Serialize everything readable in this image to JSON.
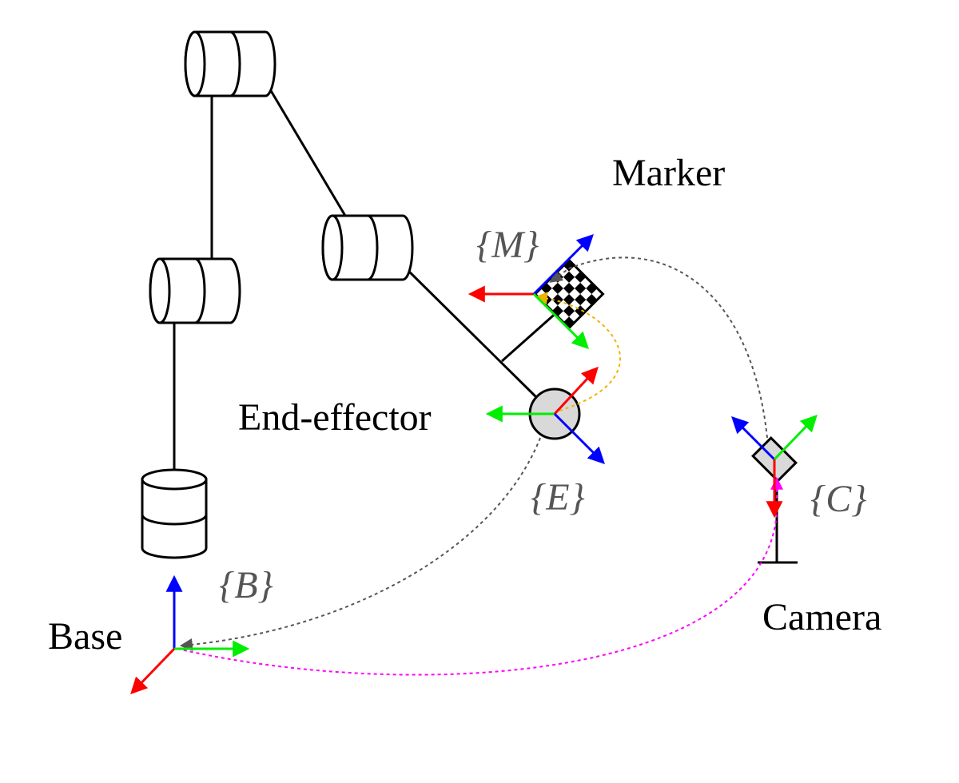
{
  "labels": {
    "marker": "Marker",
    "end_effector": "End-effector",
    "base": "Base",
    "camera": "Camera"
  },
  "frames": {
    "marker": "{M}",
    "end_effector": "{E}",
    "base": "{B}",
    "camera": "{C}"
  },
  "colors": {
    "x_axis": "#ff0000",
    "y_axis": "#00ee00",
    "z_axis": "#0000ff",
    "path_gray": "#555555",
    "path_magenta": "#ff00ff",
    "path_orange": "#f0b400",
    "gray_fill": "#d9d9d9"
  }
}
